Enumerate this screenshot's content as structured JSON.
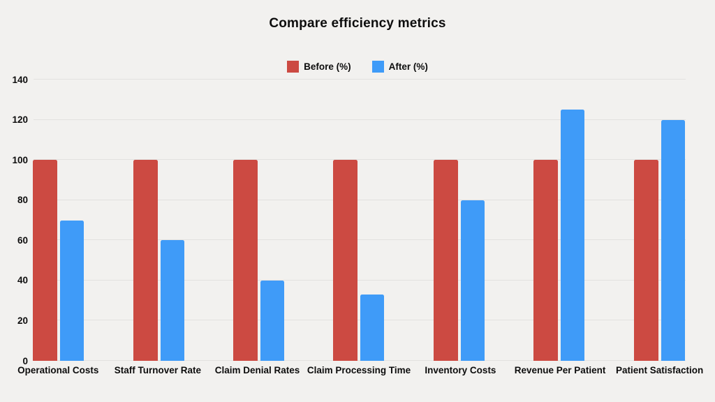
{
  "page": {
    "background": "#F2F1EF",
    "gridline_color": "#E2E1DF",
    "text_color": "#0d0d0d"
  },
  "chart_data": {
    "type": "bar",
    "title": "Compare efficiency metrics",
    "categories": [
      "Operational Costs",
      "Staff Turnover Rate",
      "Claim Denial Rates",
      "Claim Processing Time",
      "Inventory Costs",
      "Revenue Per Patient",
      "Patient Satisfaction"
    ],
    "series": [
      {
        "name": "Before (%)",
        "color": "#CC4A42",
        "values": [
          100,
          100,
          100,
          100,
          100,
          100,
          100
        ]
      },
      {
        "name": "After (%)",
        "color": "#3F9BF8",
        "values": [
          70,
          60,
          40,
          33,
          80,
          125,
          120
        ]
      }
    ],
    "xlabel": "",
    "ylabel": "",
    "ylim": [
      0,
      140
    ],
    "yticks": [
      0,
      20,
      40,
      60,
      80,
      100,
      120,
      140
    ],
    "grid": true,
    "legend_position": "top-center"
  }
}
